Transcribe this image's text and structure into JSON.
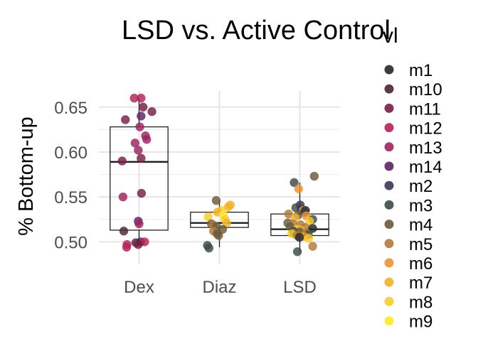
{
  "chart_data": {
    "type": "box+jitter",
    "title": "LSD vs. Active Control",
    "xlabel": "",
    "ylabel": "% Bottom-up",
    "ylim": [
      0.475,
      0.668
    ],
    "yticks": [
      0.5,
      0.55,
      0.6,
      0.65
    ],
    "ytick_labels": [
      "0.50",
      "0.55",
      "0.60",
      "0.65"
    ],
    "categories": [
      "Dex",
      "Diaz",
      "LSD"
    ],
    "grid": true,
    "legend": {
      "title": "vl",
      "placement": "right",
      "entries": [
        "m1",
        "m10",
        "m11",
        "m12",
        "m13",
        "m14",
        "m2",
        "m3",
        "m4",
        "m5",
        "m6",
        "m7",
        "m8",
        "m9"
      ],
      "colors": [
        "#262626",
        "#4a2436",
        "#751f45",
        "#b2235a",
        "#9b2360",
        "#5c2460",
        "#3b3656",
        "#3c4b48",
        "#6a5a3c",
        "#b07a3c",
        "#e8962e",
        "#f0b12a",
        "#f6cc2d",
        "#fbe92b"
      ]
    },
    "boxes": [
      {
        "category": "Dex",
        "q1": 0.513,
        "median": 0.589,
        "q3": 0.628,
        "whisker_low": 0.496,
        "whisker_high": 0.66
      },
      {
        "category": "Diaz",
        "q1": 0.516,
        "median": 0.521,
        "q3": 0.533,
        "whisker_low": 0.494,
        "whisker_high": 0.546
      },
      {
        "category": "LSD",
        "q1": 0.507,
        "median": 0.514,
        "q3": 0.531,
        "whisker_low": 0.489,
        "whisker_high": 0.566
      }
    ],
    "points": {
      "Dex": [
        {
          "v": 0.66,
          "j": -0.12,
          "s": "m12"
        },
        {
          "v": 0.66,
          "j": 0.05,
          "s": "m12"
        },
        {
          "v": 0.65,
          "j": 0.1,
          "s": "m11"
        },
        {
          "v": 0.645,
          "j": 0.32,
          "s": "m11"
        },
        {
          "v": 0.64,
          "j": 0.05,
          "s": "m14"
        },
        {
          "v": 0.636,
          "j": -0.34,
          "s": "m11"
        },
        {
          "v": 0.628,
          "j": 0.02,
          "s": "m13"
        },
        {
          "v": 0.618,
          "j": 0.16,
          "s": "m13"
        },
        {
          "v": 0.614,
          "j": 0.19,
          "s": "m13"
        },
        {
          "v": 0.61,
          "j": -0.1,
          "s": "m13"
        },
        {
          "v": 0.602,
          "j": -0.02,
          "s": "m13"
        },
        {
          "v": 0.593,
          "j": 0.05,
          "s": "m11"
        },
        {
          "v": 0.59,
          "j": -0.42,
          "s": "m11"
        },
        {
          "v": 0.554,
          "j": 0.06,
          "s": "m11"
        },
        {
          "v": 0.55,
          "j": -0.4,
          "s": "m13"
        },
        {
          "v": 0.523,
          "j": -0.02,
          "s": "m14"
        },
        {
          "v": 0.52,
          "j": 0.0,
          "s": "m13"
        },
        {
          "v": 0.512,
          "j": -0.38,
          "s": "m10"
        },
        {
          "v": 0.5,
          "j": 0.04,
          "s": "m14"
        },
        {
          "v": 0.5,
          "j": 0.14,
          "s": "m12"
        },
        {
          "v": 0.499,
          "j": -0.08,
          "s": "m10"
        },
        {
          "v": 0.497,
          "j": -0.02,
          "s": "m11"
        },
        {
          "v": 0.497,
          "j": -0.3,
          "s": "m12"
        },
        {
          "v": 0.494,
          "j": -0.31,
          "s": "m12"
        }
      ],
      "Diaz": [
        {
          "v": 0.546,
          "j": -0.08,
          "s": "m4"
        },
        {
          "v": 0.541,
          "j": 0.27,
          "s": "m7"
        },
        {
          "v": 0.539,
          "j": 0.22,
          "s": "m7"
        },
        {
          "v": 0.535,
          "j": 0.04,
          "s": "m8"
        },
        {
          "v": 0.533,
          "j": -0.05,
          "s": "m7"
        },
        {
          "v": 0.53,
          "j": 0.1,
          "s": "m9"
        },
        {
          "v": 0.528,
          "j": -0.28,
          "s": "m8"
        },
        {
          "v": 0.525,
          "j": 0.14,
          "s": "m8"
        },
        {
          "v": 0.521,
          "j": 0.18,
          "s": "m7"
        },
        {
          "v": 0.52,
          "j": -0.2,
          "s": "m4"
        },
        {
          "v": 0.519,
          "j": -0.16,
          "s": "m5"
        },
        {
          "v": 0.517,
          "j": -0.07,
          "s": "m4"
        },
        {
          "v": 0.514,
          "j": 0.08,
          "s": "m4"
        },
        {
          "v": 0.512,
          "j": -0.15,
          "s": "m5"
        },
        {
          "v": 0.509,
          "j": -0.06,
          "s": "m4"
        },
        {
          "v": 0.507,
          "j": -0.02,
          "s": "m4"
        },
        {
          "v": 0.496,
          "j": -0.3,
          "s": "m3"
        },
        {
          "v": 0.493,
          "j": -0.26,
          "s": "m3"
        }
      ],
      "LSD": [
        {
          "v": 0.573,
          "j": 0.36,
          "s": "m4"
        },
        {
          "v": 0.566,
          "j": -0.14,
          "s": "m3"
        },
        {
          "v": 0.559,
          "j": -0.03,
          "s": "m6"
        },
        {
          "v": 0.541,
          "j": 0.01,
          "s": "m2"
        },
        {
          "v": 0.538,
          "j": -0.1,
          "s": "m3"
        },
        {
          "v": 0.536,
          "j": 0.04,
          "s": "m2"
        },
        {
          "v": 0.535,
          "j": 0.09,
          "s": "m7"
        },
        {
          "v": 0.535,
          "j": 0.14,
          "s": "m1"
        },
        {
          "v": 0.533,
          "j": 0.11,
          "s": "m2"
        },
        {
          "v": 0.531,
          "j": -0.28,
          "s": "m5"
        },
        {
          "v": 0.53,
          "j": -0.04,
          "s": "m4"
        },
        {
          "v": 0.529,
          "j": 0.16,
          "s": "m6"
        },
        {
          "v": 0.527,
          "j": -0.12,
          "s": "m7"
        },
        {
          "v": 0.525,
          "j": 0.32,
          "s": "m3"
        },
        {
          "v": 0.523,
          "j": 0.24,
          "s": "m8"
        },
        {
          "v": 0.521,
          "j": -0.3,
          "s": "m4"
        },
        {
          "v": 0.52,
          "j": -0.17,
          "s": "m5"
        },
        {
          "v": 0.519,
          "j": 0.02,
          "s": "m5"
        },
        {
          "v": 0.517,
          "j": -0.24,
          "s": "m4"
        },
        {
          "v": 0.516,
          "j": 0.13,
          "s": "m5"
        },
        {
          "v": 0.515,
          "j": 0.32,
          "s": "m1"
        },
        {
          "v": 0.514,
          "j": -0.08,
          "s": "m8"
        },
        {
          "v": 0.513,
          "j": 0.04,
          "s": "m7"
        },
        {
          "v": 0.512,
          "j": -0.16,
          "s": "m3"
        },
        {
          "v": 0.511,
          "j": -0.01,
          "s": "m4"
        },
        {
          "v": 0.51,
          "j": 0.16,
          "s": "m5"
        },
        {
          "v": 0.509,
          "j": -0.2,
          "s": "m8"
        },
        {
          "v": 0.508,
          "j": 0.21,
          "s": "m3"
        },
        {
          "v": 0.507,
          "j": -0.07,
          "s": "m5"
        },
        {
          "v": 0.506,
          "j": 0.1,
          "s": "m6"
        },
        {
          "v": 0.505,
          "j": -0.01,
          "s": "m1"
        },
        {
          "v": 0.504,
          "j": 0.22,
          "s": "m8"
        },
        {
          "v": 0.495,
          "j": 0.32,
          "s": "m5"
        },
        {
          "v": 0.489,
          "j": -0.06,
          "s": "m3"
        }
      ]
    }
  }
}
